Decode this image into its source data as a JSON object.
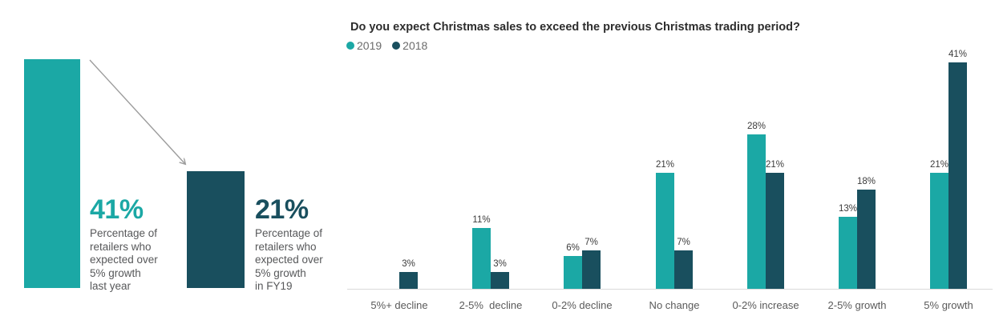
{
  "colors": {
    "series_2019": "#1ba8a5",
    "series_2018": "#194f5e",
    "caption_gray": "#57585a",
    "title_dark": "#2d2d2d",
    "axis_gray": "#dadada",
    "arrow_gray": "#9c9c9c"
  },
  "chart_data": [
    {
      "id": "highlight-comparison",
      "type": "bar",
      "title": "",
      "categories": [
        "last year",
        "FY19"
      ],
      "ylim": [
        0,
        41
      ],
      "grid": false,
      "items": [
        {
          "label": "41%",
          "pct": 41,
          "color": "#1ba8a5",
          "caption": "Percentage of\nretailers who\nexpected over\n5% growth\nlast year"
        },
        {
          "label": "21%",
          "pct": 21,
          "color": "#194f5e",
          "caption": "Percentage of\nretailers who\nexpected over\n5% growth\nin FY19"
        }
      ],
      "annotation": "arrow-down-right"
    },
    {
      "id": "christmas-sales-survey",
      "type": "bar",
      "title": "Do you expect Christmas sales to exceed the previous Christmas trading period?",
      "categories": [
        "5%+ decline",
        "2-5%  decline",
        "0-2% decline",
        "No change",
        "0-2% increase",
        "2-5% growth",
        "5% growth"
      ],
      "series": [
        {
          "name": "2019",
          "color": "#1ba8a5",
          "values": [
            0,
            11,
            6,
            21,
            28,
            13,
            21
          ]
        },
        {
          "name": "2018",
          "color": "#194f5e",
          "values": [
            3,
            3,
            7,
            7,
            21,
            18,
            41
          ]
        }
      ],
      "value_suffix": "%",
      "data_labels": true,
      "ylim": [
        0,
        45
      ],
      "grid": false,
      "legend_position": "top-left",
      "xlabel": "",
      "ylabel": ""
    }
  ]
}
